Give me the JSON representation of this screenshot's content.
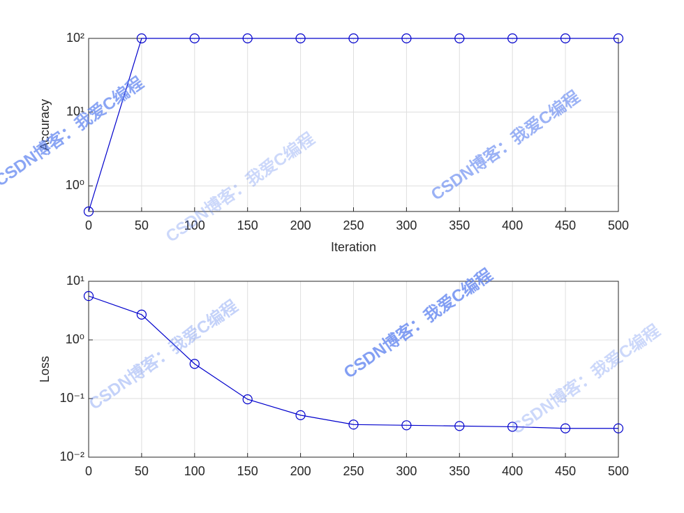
{
  "chart_data": [
    {
      "type": "line",
      "ylabel": "Accuracy",
      "xlabel": "Iteration",
      "x": [
        0,
        50,
        100,
        150,
        200,
        250,
        300,
        350,
        400,
        450,
        500
      ],
      "series": [
        {
          "color": "#0000cc",
          "values": [
            0.45,
            100,
            100,
            100,
            100,
            100,
            100,
            100,
            100,
            100,
            100
          ]
        }
      ],
      "marker": "circle",
      "log_y": true,
      "grid": true,
      "xlim": [
        0,
        500
      ],
      "xticks": [
        0,
        50,
        100,
        150,
        200,
        250,
        300,
        350,
        400,
        450,
        500
      ],
      "ylim": [
        0.45,
        100
      ],
      "yticks": [
        {
          "value": 1,
          "label": "10⁰"
        },
        {
          "value": 10,
          "label": "10¹"
        },
        {
          "value": 100,
          "label": "10²"
        }
      ]
    },
    {
      "type": "line",
      "ylabel": "Loss",
      "x": [
        0,
        50,
        100,
        150,
        200,
        250,
        300,
        350,
        400,
        450,
        500
      ],
      "series": [
        {
          "color": "#0000cc",
          "values": [
            5.6,
            2.7,
            0.39,
            0.097,
            0.052,
            0.036,
            0.035,
            0.034,
            0.033,
            0.031,
            0.031
          ]
        }
      ],
      "marker": "circle",
      "log_y": true,
      "grid": true,
      "xlim": [
        0,
        500
      ],
      "xticks": [
        0,
        50,
        100,
        150,
        200,
        250,
        300,
        350,
        400,
        450,
        500
      ],
      "ylim": [
        0.01,
        10
      ],
      "yticks": [
        {
          "value": 0.01,
          "label": "10⁻²"
        },
        {
          "value": 0.1,
          "label": "10⁻¹"
        },
        {
          "value": 1,
          "label": "10⁰"
        },
        {
          "value": 10,
          "label": "10¹"
        }
      ]
    }
  ],
  "watermarks": [
    "CSDN博客：我爱C编程",
    "CSDN博客：我爱C编程",
    "CSDN博客：我爱C编程",
    "CSDN博客：我爱C编程",
    "CSDN博客：我爱C编程",
    "CSDN博客：我爱C编程"
  ]
}
